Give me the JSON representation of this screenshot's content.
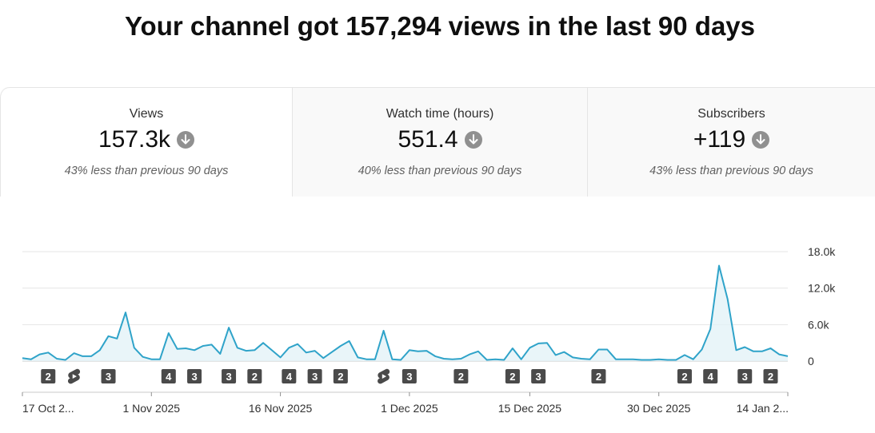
{
  "headline": "Your channel got 157,294 views in the last 90 days",
  "metrics": [
    {
      "label": "Views",
      "value": "157.3k",
      "trend": "down",
      "comparison": "43% less than previous 90 days"
    },
    {
      "label": "Watch time (hours)",
      "value": "551.4",
      "trend": "down",
      "comparison": "40% less than previous 90 days"
    },
    {
      "label": "Subscribers",
      "value": "+119",
      "trend": "down",
      "comparison": "43% less than previous 90 days"
    }
  ],
  "colors": {
    "line": "#2fa3c9",
    "fill": "#e3f2f8",
    "badge": "#4a4a4a",
    "grid": "#e5e5e5",
    "axis": "#909090",
    "trend_icon": "#909090"
  },
  "chart_data": {
    "type": "area",
    "metric": "Views",
    "yticks": [
      {
        "value": 0,
        "label": "0"
      },
      {
        "value": 6000,
        "label": "6.0k"
      },
      {
        "value": 12000,
        "label": "12.0k"
      },
      {
        "value": 18000,
        "label": "18.0k"
      }
    ],
    "ylim": [
      0,
      18000
    ],
    "xlim": [
      0,
      89
    ],
    "x_ticks": [
      {
        "day": 0,
        "label": "17 Oct 2..."
      },
      {
        "day": 15,
        "label": "1 Nov 2025"
      },
      {
        "day": 30,
        "label": "16 Nov 2025"
      },
      {
        "day": 45,
        "label": "1 Dec 2025"
      },
      {
        "day": 59,
        "label": "15 Dec 2025"
      },
      {
        "day": 74,
        "label": "30 Dec 2025"
      },
      {
        "day": 89,
        "label": "14 Jan 2..."
      }
    ],
    "values": [
      500,
      300,
      1100,
      1400,
      400,
      200,
      1300,
      800,
      800,
      1800,
      4100,
      3700,
      8000,
      2200,
      700,
      300,
      300,
      4600,
      2000,
      2100,
      1800,
      2500,
      2700,
      1200,
      5500,
      2200,
      1700,
      1800,
      3000,
      1800,
      600,
      2200,
      2800,
      1400,
      1700,
      500,
      1500,
      2500,
      3300,
      600,
      300,
      300,
      5000,
      300,
      200,
      1800,
      1600,
      1700,
      800,
      400,
      300,
      400,
      1100,
      1600,
      200,
      300,
      200,
      2100,
      300,
      2200,
      2900,
      3000,
      1000,
      1500,
      600,
      400,
      300,
      1900,
      1900,
      300,
      300,
      300,
      200,
      200,
      300,
      200,
      200,
      1000,
      300,
      1900,
      5300,
      15700,
      10200,
      1800,
      2300,
      1600,
      1600,
      2100,
      1100,
      800
    ],
    "markers": [
      {
        "day": 3,
        "type": "count",
        "label": "2"
      },
      {
        "day": 6,
        "type": "shorts"
      },
      {
        "day": 10,
        "type": "count",
        "label": "3"
      },
      {
        "day": 17,
        "type": "count",
        "label": "4"
      },
      {
        "day": 20,
        "type": "count",
        "label": "3"
      },
      {
        "day": 24,
        "type": "count",
        "label": "3"
      },
      {
        "day": 27,
        "type": "count",
        "label": "2"
      },
      {
        "day": 31,
        "type": "count",
        "label": "4"
      },
      {
        "day": 34,
        "type": "count",
        "label": "3"
      },
      {
        "day": 37,
        "type": "count",
        "label": "2"
      },
      {
        "day": 42,
        "type": "shorts"
      },
      {
        "day": 45,
        "type": "count",
        "label": "3"
      },
      {
        "day": 51,
        "type": "count",
        "label": "2"
      },
      {
        "day": 57,
        "type": "count",
        "label": "2"
      },
      {
        "day": 60,
        "type": "count",
        "label": "3"
      },
      {
        "day": 67,
        "type": "count",
        "label": "2"
      },
      {
        "day": 77,
        "type": "count",
        "label": "2"
      },
      {
        "day": 80,
        "type": "count",
        "label": "4"
      },
      {
        "day": 84,
        "type": "count",
        "label": "3"
      },
      {
        "day": 87,
        "type": "count",
        "label": "2"
      }
    ]
  }
}
